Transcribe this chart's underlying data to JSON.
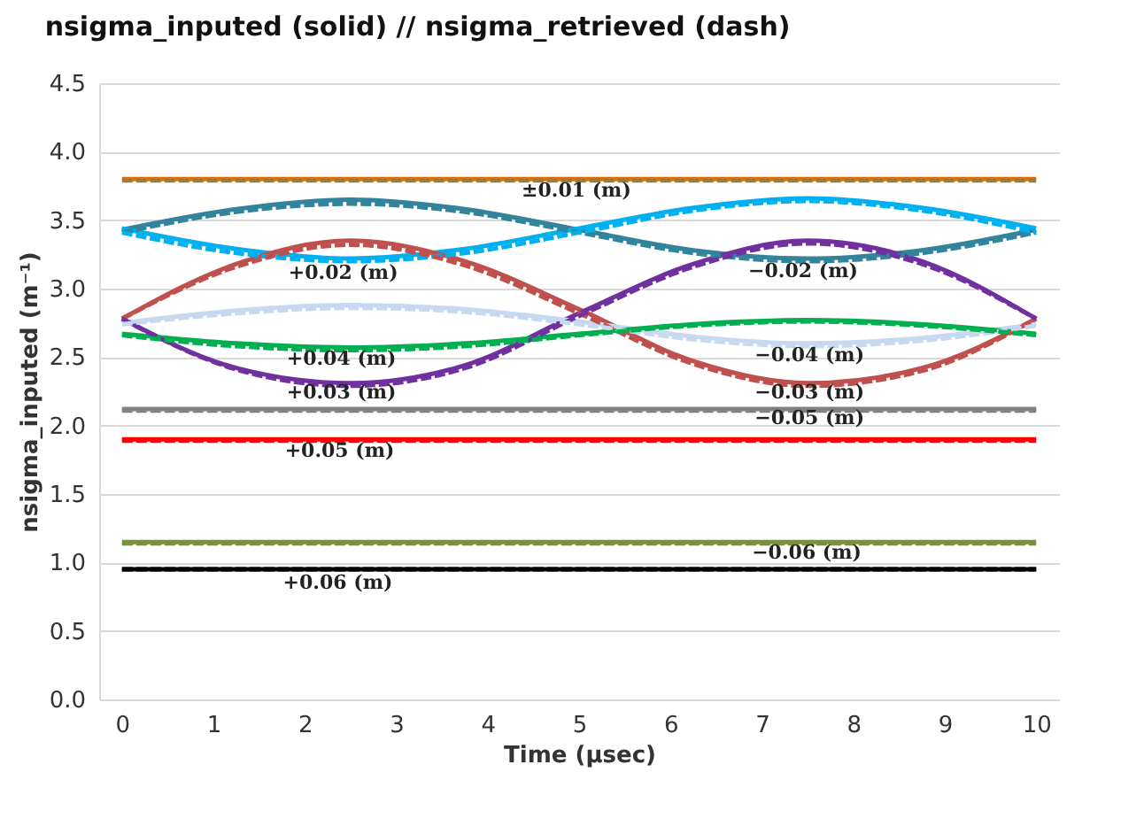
{
  "chart_data": {
    "type": "line",
    "title": "nsigma_inputed (solid) // nsigma_retrieved (dash)",
    "xlabel": "Time (μsec)",
    "ylabel": "nsigma_inputed (m⁻¹)",
    "x": [
      0,
      1.25,
      2.5,
      3.75,
      5,
      6.25,
      7.5,
      8.75,
      10
    ],
    "xlim": [
      -0.25,
      10.25
    ],
    "xticks": [
      0,
      1,
      2,
      3,
      4,
      5,
      6,
      7,
      8,
      9,
      10
    ],
    "ylim": [
      0,
      4.5
    ],
    "yticks": [
      {
        "value": 0,
        "label": "0.0"
      },
      0.5,
      {
        "value": 1,
        "label": "1.0"
      },
      1.5,
      {
        "value": 2,
        "label": "2.0"
      },
      2.5,
      {
        "value": 3,
        "label": "3.0"
      },
      3.5,
      {
        "value": 4,
        "label": "4.0"
      },
      4.5
    ],
    "grid": "y",
    "series": [
      {
        "color": "#e46c0a",
        "line_style": "solid",
        "values": [
          3.8,
          3.8,
          3.8,
          3.8,
          3.8,
          3.8,
          3.8,
          3.8,
          3.8
        ]
      },
      {
        "color": "#9c7a3c",
        "line_style": "dashed",
        "values": [
          3.79,
          3.79,
          3.79,
          3.79,
          3.79,
          3.79,
          3.79,
          3.79,
          3.79
        ]
      },
      {
        "color": "#31849b",
        "line_style": "solid",
        "values": [
          3.43,
          3.58,
          3.65,
          3.58,
          3.43,
          3.28,
          3.22,
          3.28,
          3.43
        ]
      },
      {
        "color": "#31849b",
        "line_style": "dashed",
        "values": [
          3.41,
          3.56,
          3.62,
          3.56,
          3.41,
          3.26,
          3.2,
          3.26,
          3.41
        ]
      },
      {
        "color": "#00b0f0",
        "line_style": "solid",
        "values": [
          3.44,
          3.29,
          3.22,
          3.29,
          3.44,
          3.59,
          3.66,
          3.59,
          3.44
        ]
      },
      {
        "color": "#00b0f0",
        "line_style": "dashed",
        "values": [
          3.41,
          3.26,
          3.2,
          3.26,
          3.41,
          3.57,
          3.64,
          3.57,
          3.41
        ]
      },
      {
        "color": "#c0504d",
        "line_style": "solid",
        "values": [
          2.78,
          3.18,
          3.35,
          3.2,
          2.85,
          2.47,
          2.31,
          2.42,
          2.78
        ]
      },
      {
        "color": "#c0504d",
        "line_style": "dashed",
        "values": [
          2.78,
          3.16,
          3.32,
          3.17,
          2.82,
          2.45,
          2.29,
          2.4,
          2.78
        ]
      },
      {
        "color": "#7030a0",
        "line_style": "solid",
        "values": [
          2.78,
          2.42,
          2.31,
          2.44,
          2.82,
          3.18,
          3.35,
          3.2,
          2.78
        ]
      },
      {
        "color": "#7030a0",
        "line_style": "dashed",
        "values": [
          2.78,
          2.41,
          2.29,
          2.42,
          2.8,
          3.16,
          3.33,
          3.18,
          2.78
        ]
      },
      {
        "color": "#c6d9f1",
        "line_style": "solid",
        "values": [
          2.75,
          2.84,
          2.88,
          2.85,
          2.76,
          2.65,
          2.6,
          2.64,
          2.74
        ]
      },
      {
        "color": "#c6d9f1",
        "line_style": "dashed",
        "values": [
          2.74,
          2.82,
          2.86,
          2.83,
          2.74,
          2.63,
          2.58,
          2.62,
          2.73
        ]
      },
      {
        "color": "#00b050",
        "line_style": "solid",
        "values": [
          2.67,
          2.6,
          2.57,
          2.6,
          2.67,
          2.74,
          2.77,
          2.74,
          2.67
        ]
      },
      {
        "color": "#00b050",
        "line_style": "dashed",
        "values": [
          2.66,
          2.58,
          2.55,
          2.58,
          2.66,
          2.73,
          2.76,
          2.73,
          2.66
        ]
      },
      {
        "color": "#808080",
        "line_style": "solid",
        "values": [
          2.12,
          2.12,
          2.12,
          2.12,
          2.12,
          2.12,
          2.12,
          2.12,
          2.12
        ]
      },
      {
        "color": "#808080",
        "line_style": "dashed",
        "values": [
          2.11,
          2.11,
          2.11,
          2.11,
          2.11,
          2.11,
          2.11,
          2.11,
          2.11
        ]
      },
      {
        "color": "#ff0000",
        "line_style": "solid",
        "values": [
          1.9,
          1.9,
          1.9,
          1.9,
          1.9,
          1.9,
          1.9,
          1.9,
          1.9
        ]
      },
      {
        "color": "#ff0000",
        "line_style": "dashed",
        "values": [
          1.89,
          1.89,
          1.89,
          1.89,
          1.89,
          1.89,
          1.89,
          1.89,
          1.89
        ]
      },
      {
        "color": "#77933c",
        "line_style": "solid",
        "values": [
          1.15,
          1.15,
          1.15,
          1.15,
          1.15,
          1.15,
          1.15,
          1.15,
          1.15
        ]
      },
      {
        "color": "#77933c",
        "line_style": "dashed",
        "values": [
          1.14,
          1.14,
          1.14,
          1.14,
          1.14,
          1.14,
          1.14,
          1.14,
          1.14
        ]
      },
      {
        "color": "#000000",
        "line_style": "solid",
        "values": [
          0.95,
          0.95,
          0.95,
          0.95,
          0.95,
          0.95,
          0.95,
          0.95,
          0.95
        ]
      },
      {
        "color": "#000000",
        "line_style": "dashed",
        "values": [
          0.95,
          0.95,
          0.95,
          0.95,
          0.95,
          0.95,
          0.95,
          0.95,
          0.95
        ]
      }
    ],
    "annotations": [
      "±0.01 (m)",
      "+0.02 (m)",
      "−0.02 (m)",
      "+0.04 (m)",
      "−0.04 (m)",
      "+0.03 (m)",
      "−0.03 (m)",
      "−0.05 (m)",
      "+0.05 (m)",
      "−0.06 (m)",
      "+0.06 (m)"
    ]
  }
}
